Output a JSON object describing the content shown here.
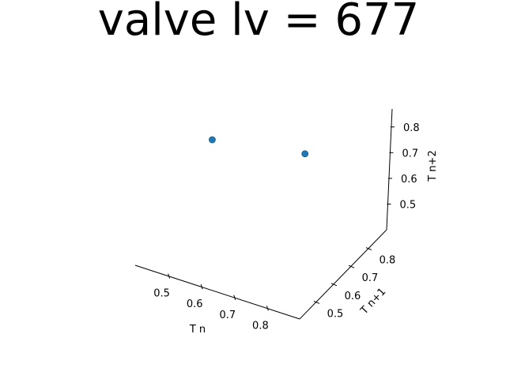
{
  "chart_data": {
    "type": "scatter",
    "projection": "3d",
    "title": "valve lv = 677",
    "xlabel": "T n",
    "ylabel": "T n+1",
    "zlabel": "T n+2",
    "x_ticks": [
      "0.5",
      "0.6",
      "0.7",
      "0.8"
    ],
    "y_ticks": [
      "0.5",
      "0.6",
      "0.7",
      "0.8"
    ],
    "z_ticks": [
      "0.5",
      "0.6",
      "0.7",
      "0.8"
    ],
    "xlim": [
      0.4,
      0.9
    ],
    "ylim": [
      0.4,
      0.9
    ],
    "zlim": [
      0.4,
      0.87
    ],
    "grid": false,
    "marker_color": "#1f77b4",
    "points": [
      {
        "x": 0.4,
        "y": 0.83,
        "z": 0.59
      },
      {
        "x": 0.64,
        "y": 0.91,
        "z": 0.58
      }
    ]
  }
}
